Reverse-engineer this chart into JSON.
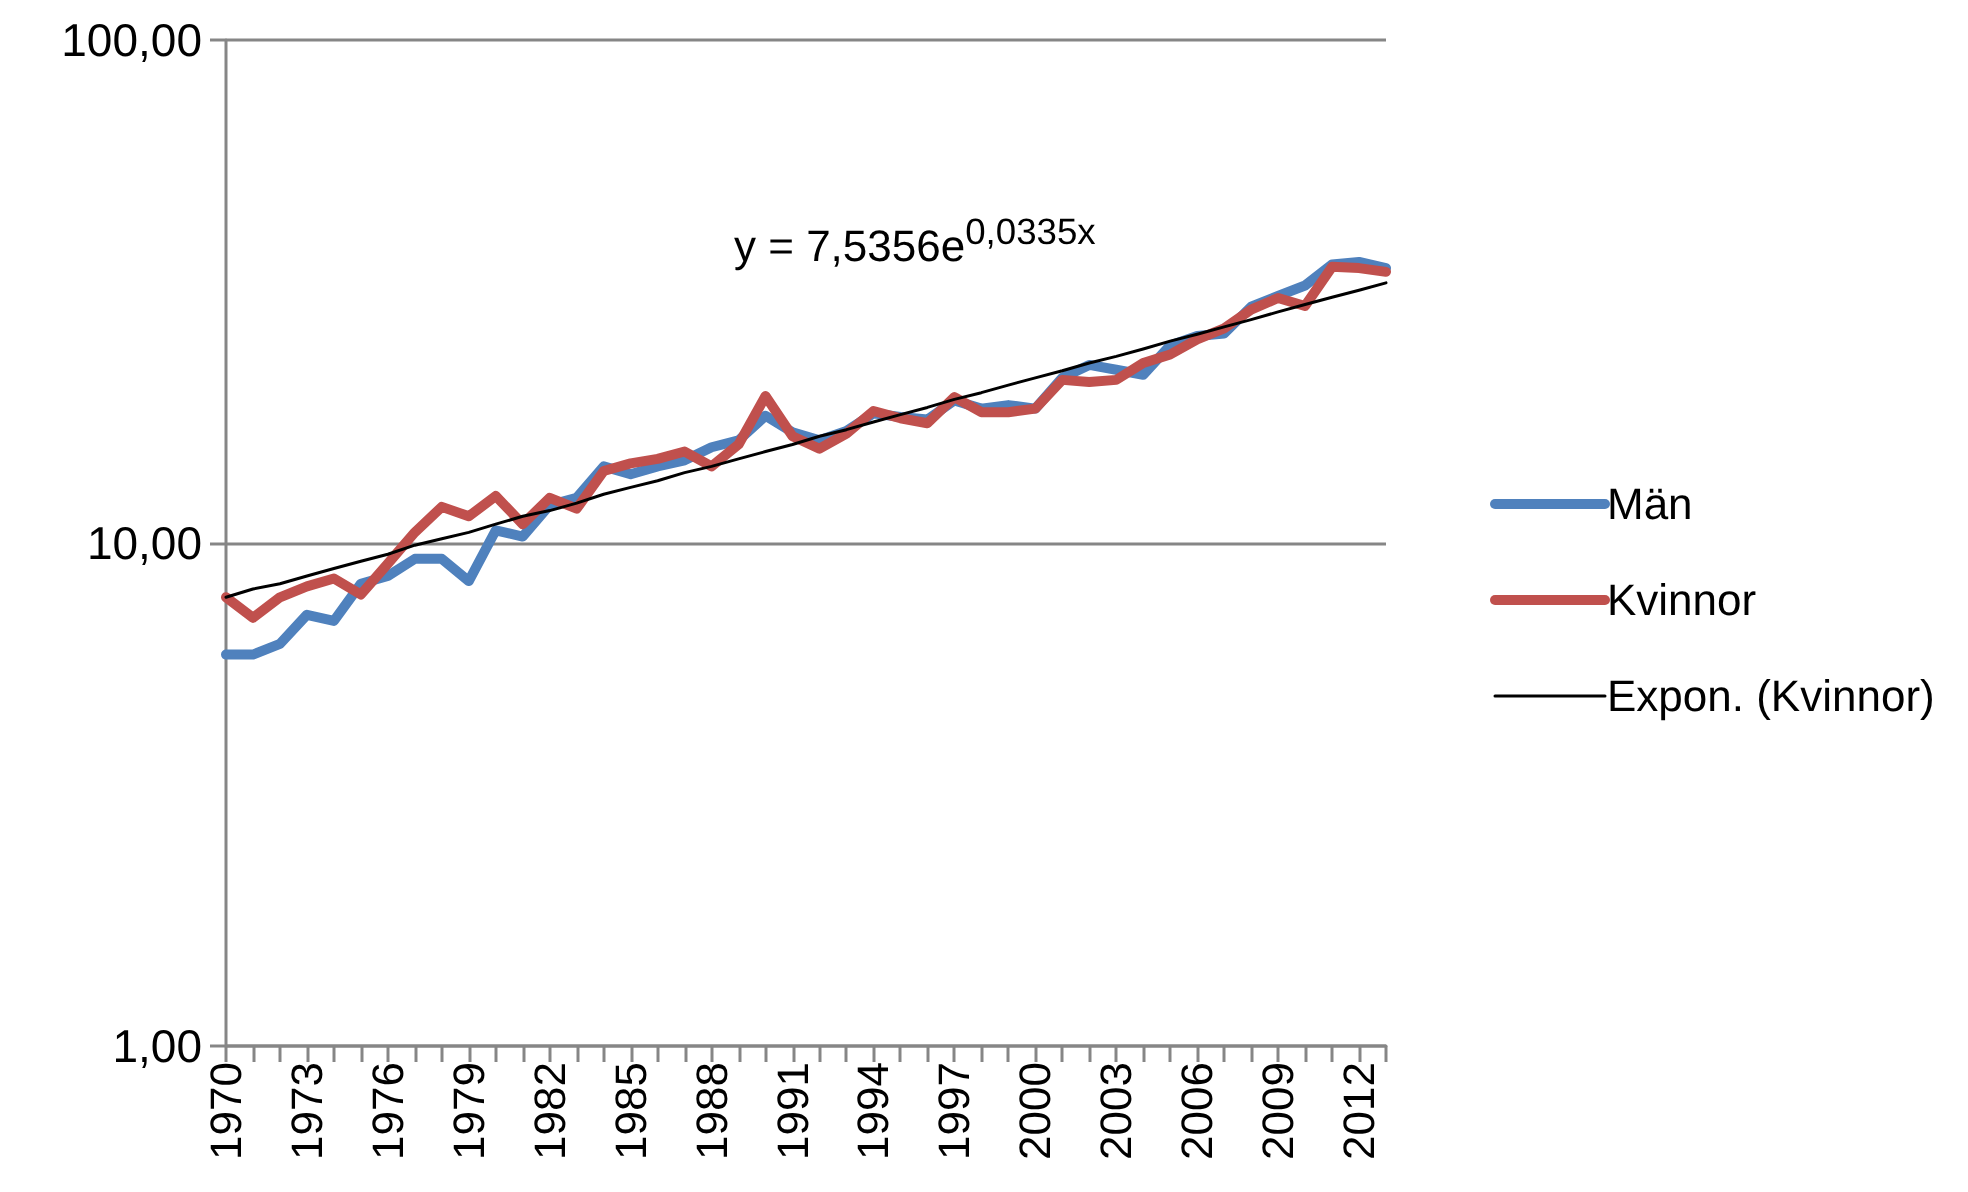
{
  "chart_data": {
    "type": "line",
    "categories": [
      "1970",
      null,
      null,
      "1973",
      null,
      null,
      "1976",
      null,
      null,
      "1979",
      null,
      null,
      "1982",
      null,
      null,
      "1985",
      null,
      null,
      "1988",
      null,
      null,
      "1991",
      null,
      null,
      "1994",
      null,
      null,
      "1997",
      null,
      null,
      "2000",
      null,
      null,
      "2003",
      null,
      null,
      "2006",
      null,
      null,
      "2009",
      null,
      null,
      "2012",
      null
    ],
    "series": [
      {
        "name": "Män",
        "color": "#4f81bd",
        "values": [
          6.0,
          6.0,
          6.3,
          7.2,
          7.0,
          8.3,
          8.6,
          9.3,
          9.3,
          8.4,
          10.6,
          10.3,
          11.9,
          12.3,
          14.2,
          13.7,
          14.2,
          14.6,
          15.5,
          16.0,
          17.9,
          16.6,
          16.0,
          16.7,
          18.1,
          17.8,
          17.6,
          19.2,
          18.5,
          18.8,
          18.5,
          21.3,
          22.6,
          22.1,
          21.6,
          24.7,
          25.8,
          26.1,
          29.5,
          31.0,
          32.5,
          35.8,
          36.2,
          35.2
        ]
      },
      {
        "name": "Kvinnor",
        "color": "#c0504d",
        "values": [
          7.8,
          7.1,
          7.8,
          8.2,
          8.5,
          7.9,
          9.1,
          10.5,
          11.8,
          11.3,
          12.4,
          10.9,
          12.3,
          11.7,
          13.9,
          14.4,
          14.7,
          15.2,
          14.2,
          15.7,
          19.6,
          16.3,
          15.4,
          16.5,
          18.3,
          17.7,
          17.3,
          19.5,
          18.2,
          18.2,
          18.5,
          21.1,
          20.9,
          21.1,
          22.8,
          23.7,
          25.4,
          26.7,
          29.1,
          30.7,
          29.6,
          35.4,
          35.2,
          34.6
        ]
      },
      {
        "name": "Expon. (Kvinnor)",
        "type": "line",
        "color": "#000000",
        "values": [
          7.8,
          8.1,
          8.3,
          8.6,
          8.9,
          9.2,
          9.5,
          9.9,
          10.2,
          10.5,
          10.9,
          11.3,
          11.6,
          12.0,
          12.5,
          12.9,
          13.3,
          13.8,
          14.2,
          14.7,
          15.2,
          15.7,
          16.3,
          16.8,
          17.4,
          18.0,
          18.6,
          19.3,
          19.9,
          20.6,
          21.3,
          22.0,
          22.8,
          23.5,
          24.3,
          25.2,
          26.0,
          26.9,
          27.8,
          28.8,
          29.8,
          30.8,
          31.8,
          32.9
        ]
      }
    ],
    "ylim": [
      1,
      100
    ],
    "yticks": [
      {
        "value": 1,
        "label": "1,00"
      },
      {
        "value": 10,
        "label": "10,00"
      },
      {
        "value": 100,
        "label": "100,00"
      }
    ],
    "log": true,
    "grid": "y",
    "legend": "right",
    "marker": "none",
    "annotations": [
      "y = 7,5356e$^{0,0335x}$"
    ]
  }
}
